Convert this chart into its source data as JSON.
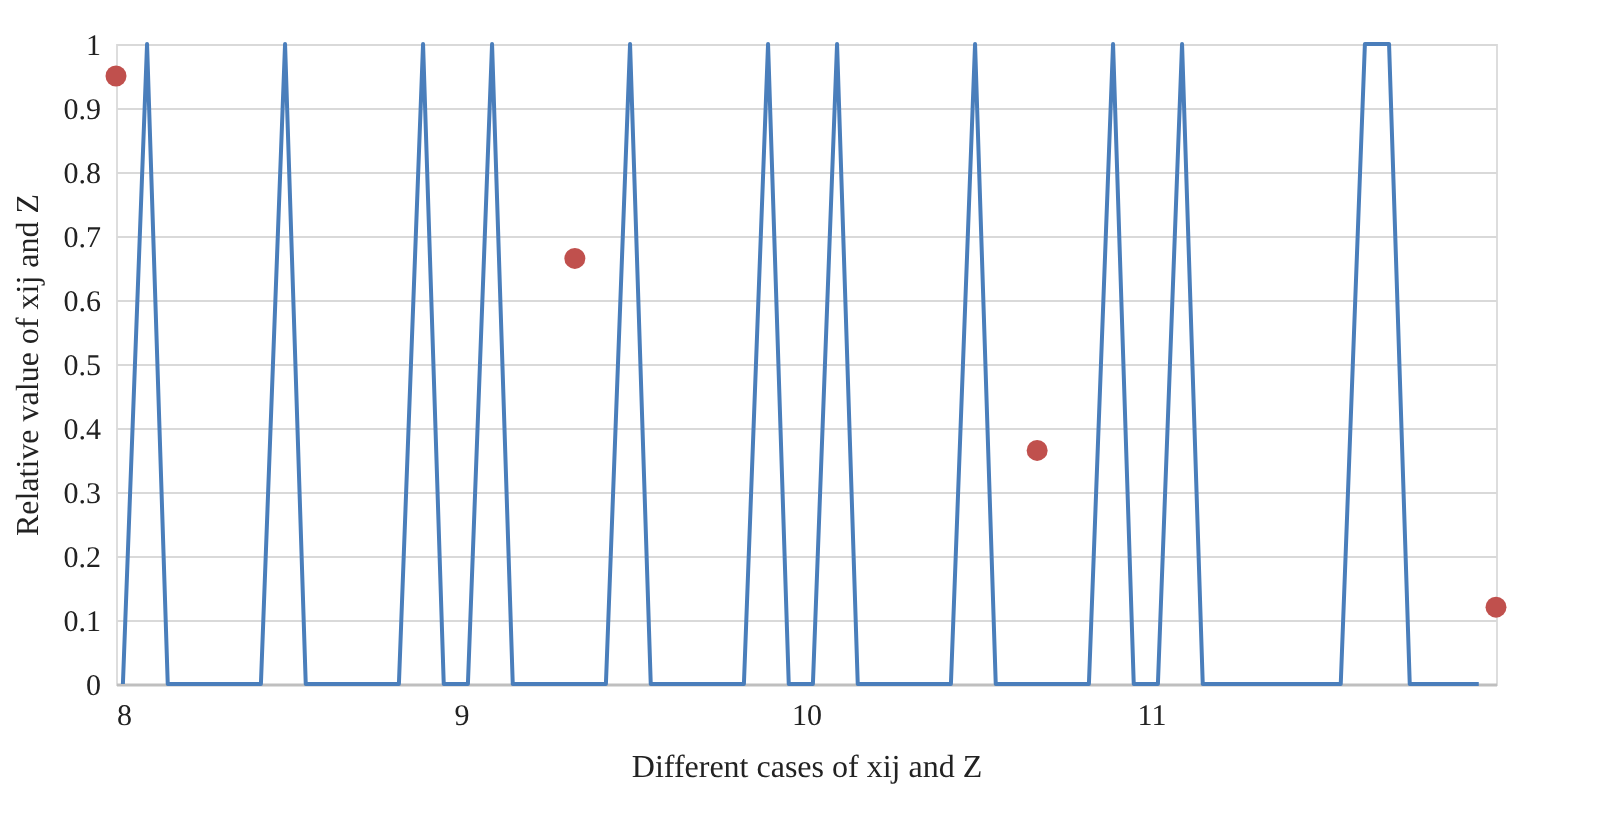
{
  "chart_data": {
    "type": "line",
    "xlabel": "Different cases of xij and Z",
    "ylabel": "Relative value of xij and Z",
    "xlim": [
      8,
      12
    ],
    "xticks": [
      8,
      9,
      10,
      11
    ],
    "ylim": [
      0,
      1
    ],
    "yticks": [
      0,
      0.1,
      0.2,
      0.3,
      0.4,
      0.5,
      0.6,
      0.7,
      0.8,
      0.9,
      1
    ],
    "grid": "y",
    "legend": false,
    "marker": "none",
    "line_style": "solid",
    "series": [
      {
        "color": "#4a7ebb",
        "x": [
          8.02,
          8.09,
          8.15,
          8.22,
          8.29,
          8.35,
          8.42,
          8.49,
          8.55,
          8.62,
          8.69,
          8.75,
          8.82,
          8.89,
          8.95,
          9.02,
          9.09,
          9.15,
          9.22,
          9.29,
          9.35,
          9.42,
          9.49,
          9.55,
          9.62,
          9.69,
          9.75,
          9.82,
          9.89,
          9.95,
          10.02,
          10.09,
          10.15,
          10.22,
          10.29,
          10.35,
          10.42,
          10.49,
          10.55,
          10.62,
          10.69,
          10.75,
          10.82,
          10.89,
          10.95,
          11.02,
          11.09,
          11.15,
          11.22,
          11.29,
          11.35,
          11.42,
          11.49,
          11.55,
          11.62,
          11.69,
          11.75,
          11.82,
          11.89,
          11.95
        ],
        "values": [
          0,
          1,
          0,
          0,
          0,
          0,
          0,
          1,
          0,
          0,
          0,
          0,
          0,
          1,
          0,
          0,
          1,
          0,
          0,
          0,
          0,
          0,
          1,
          0,
          0,
          0,
          0,
          0,
          1,
          0,
          0,
          1,
          0,
          0,
          0,
          0,
          0,
          1,
          0,
          0,
          0,
          0,
          0,
          1,
          0,
          0,
          1,
          0,
          0,
          0,
          0,
          0,
          0,
          0,
          1,
          1,
          0,
          0,
          0,
          0
        ]
      },
      {
        "type": "scatter",
        "marker": "circle",
        "color": "#c0504d",
        "x": [
          8,
          9.33,
          10.67,
          12
        ],
        "values": [
          0.95,
          0.665,
          0.365,
          0.12
        ]
      }
    ]
  }
}
